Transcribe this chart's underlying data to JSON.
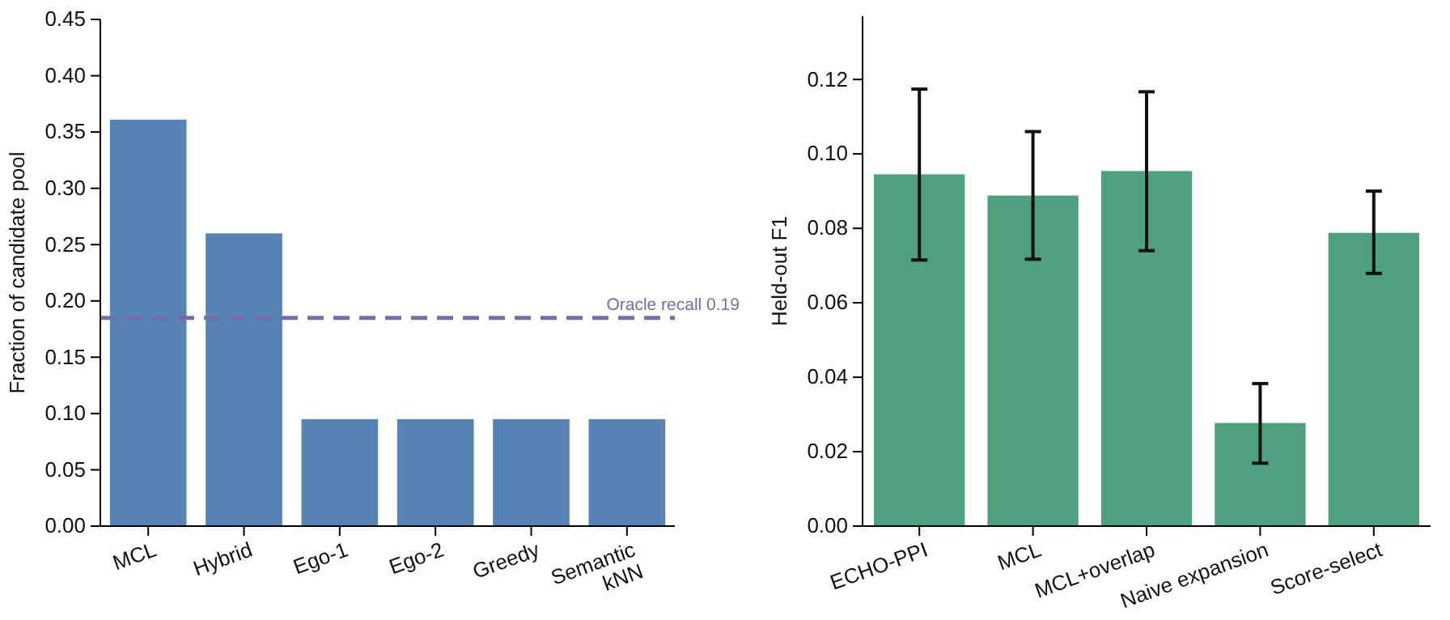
{
  "chart_data": [
    {
      "type": "bar",
      "ylabel": "Fraction of candidate pool",
      "categories": [
        "MCL",
        "Hybrid",
        "Ego-1",
        "Ego-2",
        "Greedy",
        "Semantic\nkNN"
      ],
      "series": [
        {
          "color": "#5884b5",
          "values": [
            0.361,
            0.26,
            0.095,
            0.095,
            0.095,
            0.095
          ]
        }
      ],
      "ylim": [
        0,
        0.45
      ],
      "yticks": [
        {
          "value": 0,
          "label": "0.00"
        },
        0.05,
        {
          "value": 0.1,
          "label": "0.10"
        },
        0.15,
        {
          "value": 0.2,
          "label": "0.20"
        },
        0.25,
        {
          "value": 0.3,
          "label": "0.30"
        },
        0.35,
        {
          "value": 0.4,
          "label": "0.40"
        },
        0.45
      ],
      "ref_lines": [
        {
          "axis": "y",
          "value": 0.185,
          "label": "Oracle recall 0.19",
          "color": "#7a6aa8",
          "line_style": "dashed"
        }
      ]
    },
    {
      "type": "bar",
      "ylabel": "Held-out F1",
      "categories": [
        "ECHO-PPI",
        "MCL",
        "MCL+overlap",
        "Naive expansion",
        "Score-select"
      ],
      "series": [
        {
          "color": "#4fa07f",
          "values": [
            0.0945,
            0.0888,
            0.0954,
            0.0277,
            0.0788
          ],
          "errors": [
            [
              0.0715,
              0.1174
            ],
            [
              0.0717,
              0.106
            ],
            [
              0.074,
              0.1167
            ],
            [
              0.0169,
              0.0383
            ],
            [
              0.0679,
              0.09
            ]
          ]
        }
      ],
      "ylim": [
        0,
        0.137
      ],
      "yticks": [
        {
          "value": 0,
          "label": "0.00"
        },
        0.02,
        0.04,
        0.06,
        0.08,
        {
          "value": 0.1,
          "label": "0.10"
        },
        0.12
      ]
    }
  ]
}
